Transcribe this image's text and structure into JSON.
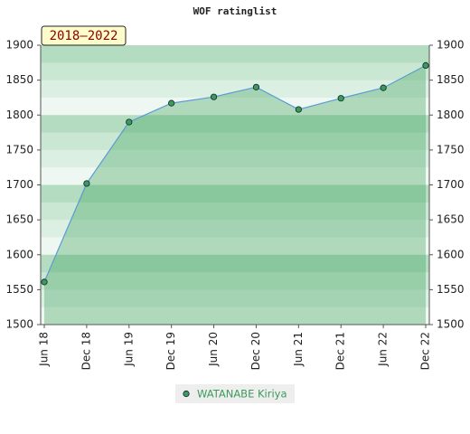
{
  "chart_data": {
    "type": "line",
    "title": "WOF ratinglist",
    "annotation": "2018–2022",
    "categories": [
      "Jun 18",
      "Dec 18",
      "Jun 19",
      "Dec 19",
      "Jun 20",
      "Dec 20",
      "Jun 21",
      "Dec 21",
      "Jun 22",
      "Dec 22"
    ],
    "series": [
      {
        "name": "WATANABE Kiriya",
        "color": "#5b9bd5",
        "values": [
          1561,
          1702,
          1790,
          1817,
          1826,
          1840,
          1808,
          1824,
          1839,
          1871
        ]
      }
    ],
    "ylim": [
      1500,
      1900
    ],
    "yticks": [
      1500,
      1550,
      1600,
      1650,
      1700,
      1750,
      1800,
      1850,
      1900
    ],
    "y2lim": [
      1500,
      1900
    ],
    "y2ticks": [
      1500,
      1550,
      1600,
      1650,
      1700,
      1750,
      1800,
      1850,
      1900
    ]
  }
}
